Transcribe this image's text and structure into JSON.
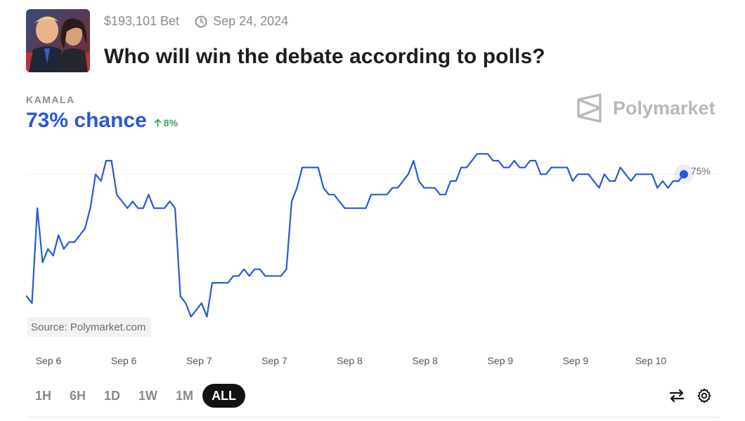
{
  "header": {
    "volume": "$193,101 Bet",
    "date": "Sep 24, 2024",
    "title": "Who will win the debate according to polls?"
  },
  "outcome": {
    "label": "KAMALA",
    "chance": "73% chance",
    "delta": "8%"
  },
  "brand": {
    "name": "Polymarket"
  },
  "source": "Source: Polymarket.com",
  "ranges": [
    "1H",
    "6H",
    "1D",
    "1W",
    "1M",
    "ALL"
  ],
  "active_range": "ALL",
  "icons": [
    "clock-icon",
    "arrow-up-icon",
    "polymarket-logo-icon",
    "swap-arrows-icon",
    "gear-icon"
  ],
  "colors": {
    "line": "#2758d8",
    "positive": "#3aa65a",
    "active_bg": "#111111"
  },
  "chart_data": {
    "type": "line",
    "title": "",
    "x_tick_labels": [
      "Sep 6",
      "Sep 6",
      "Sep 7",
      "Sep 7",
      "Sep 8",
      "Sep 8",
      "Sep 9",
      "Sep 9",
      "Sep 10"
    ],
    "y_reference_label": "75%",
    "y_reference_value": 75,
    "ylim": [
      50,
      80
    ],
    "last_value_label": "75%",
    "series": [
      {
        "values": [
          57,
          56,
          70,
          62,
          64,
          63,
          66,
          64,
          65,
          65,
          66,
          67,
          70,
          75,
          74,
          77,
          77,
          72,
          71,
          70,
          71,
          70,
          70,
          72,
          70,
          70,
          70,
          71,
          70,
          57,
          56,
          54,
          55,
          56,
          54,
          59,
          59,
          59,
          59,
          60,
          60,
          61,
          60,
          61,
          61,
          60,
          60,
          60,
          60,
          61,
          71,
          73,
          76,
          76,
          76,
          76,
          73,
          72,
          72,
          71,
          70,
          70,
          70,
          70,
          70,
          72,
          72,
          72,
          72,
          73,
          73,
          74,
          75,
          77,
          74,
          73,
          73,
          73,
          72,
          72,
          74,
          74,
          76,
          76,
          77,
          78,
          78,
          78,
          77,
          77,
          76,
          76,
          77,
          76,
          76,
          77,
          77,
          75,
          75,
          76,
          76,
          76,
          76,
          74,
          75,
          75,
          75,
          74,
          73,
          75,
          74,
          74,
          76,
          75,
          74,
          75,
          75,
          75,
          75,
          73,
          74,
          73,
          74,
          74,
          75
        ]
      }
    ]
  }
}
